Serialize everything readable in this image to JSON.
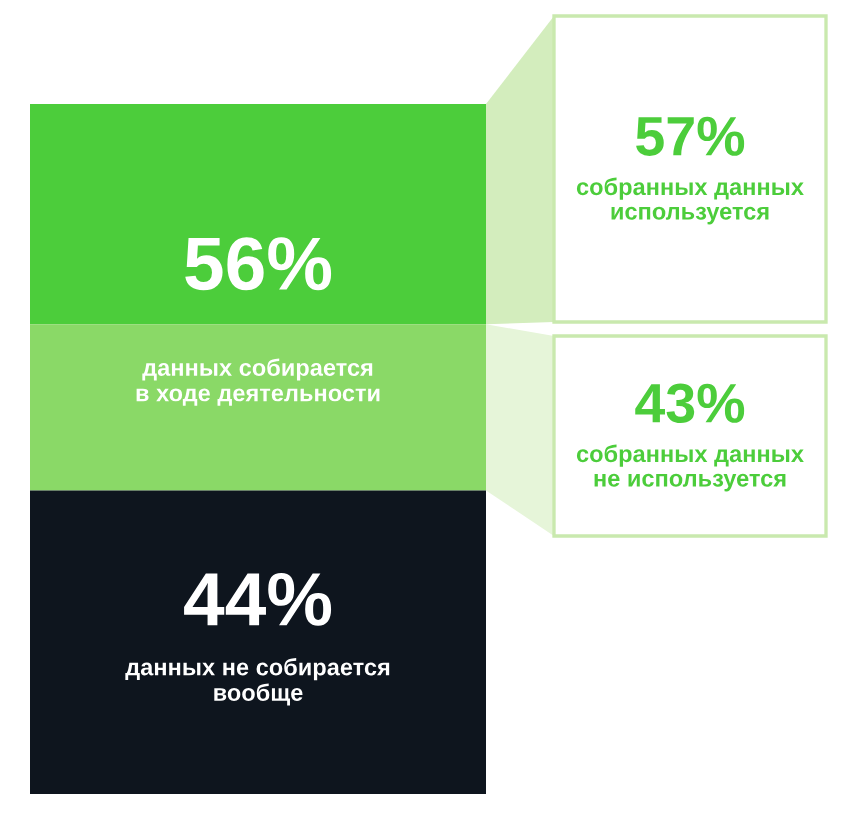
{
  "chart_data": {
    "type": "other",
    "categories": [
      "данных собирается\nв ходе деятельности",
      "данных не собирается\nвообще",
      "собранных данных\nиспользуется",
      "собранных данных\nне используется"
    ],
    "values": [
      56,
      44,
      57,
      43
    ],
    "value_labels": [
      "56%",
      "44%",
      "57%",
      "43%"
    ]
  }
}
